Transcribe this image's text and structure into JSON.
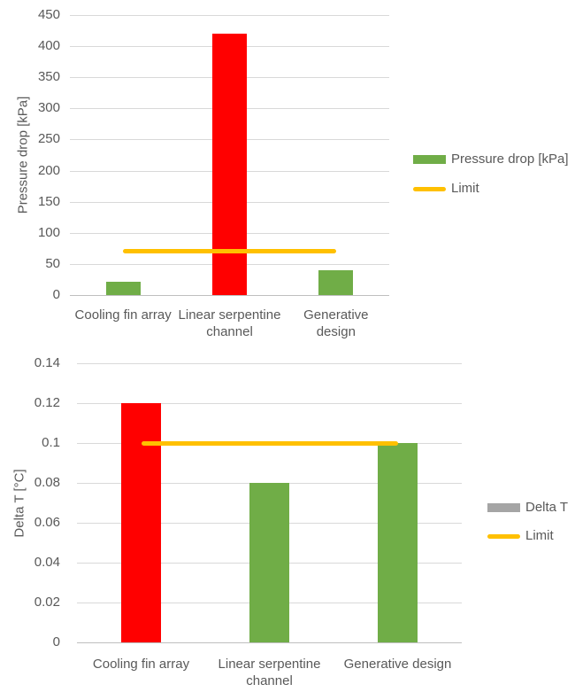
{
  "page": {
    "background": "#ffffff"
  },
  "colors": {
    "green": "#70AD47",
    "red": "#FF0000",
    "yellow": "#FFC000",
    "gray": "#A5A5A5",
    "text": "#595959",
    "gridline": "#D9D9D9",
    "axis": "#BFBFBF"
  },
  "chart_data": [
    {
      "type": "bar",
      "title": "",
      "xlabel": "",
      "ylabel": "Pressure drop [kPa]",
      "categories": [
        "Cooling fin array",
        "Linear serpentine channel",
        "Generative design"
      ],
      "category_lines": [
        [
          "Cooling fin array"
        ],
        [
          "Linear serpentine",
          "channel"
        ],
        [
          "Generative",
          "design"
        ]
      ],
      "values": [
        22,
        420,
        40
      ],
      "bar_colors": [
        "#70AD47",
        "#FF0000",
        "#70AD47"
      ],
      "ylim": [
        0,
        450
      ],
      "ytick_step": 50,
      "ytick_labels": [
        "0",
        "50",
        "100",
        "150",
        "200",
        "250",
        "300",
        "350",
        "400",
        "450"
      ],
      "grid": true,
      "limit": {
        "value": 70,
        "color": "#FFC000",
        "span_categories": [
          0,
          2
        ]
      },
      "legend": {
        "position": "right",
        "entries": [
          {
            "label": "Pressure drop [kPa]",
            "swatch": "rect",
            "color": "#70AD47"
          },
          {
            "label": "Limit",
            "swatch": "line",
            "color": "#FFC000"
          }
        ]
      }
    },
    {
      "type": "bar",
      "title": "",
      "xlabel": "",
      "ylabel": "Delta T [°C]",
      "categories": [
        "Cooling fin array",
        "Linear serpentine channel",
        "Generative design"
      ],
      "category_lines": [
        [
          "Cooling fin array"
        ],
        [
          "Linear serpentine",
          "channel"
        ],
        [
          "Generative design"
        ]
      ],
      "values": [
        0.12,
        0.08,
        0.1
      ],
      "bar_colors": [
        "#FF0000",
        "#70AD47",
        "#70AD47"
      ],
      "ylim": [
        0,
        0.14
      ],
      "ytick_step": 0.02,
      "ytick_labels": [
        "0",
        "0.02",
        "0.04",
        "0.06",
        "0.08",
        "0.1",
        "0.12",
        "0.14"
      ],
      "grid": true,
      "limit": {
        "value": 0.1,
        "color": "#FFC000",
        "span_categories": [
          0,
          2
        ]
      },
      "legend": {
        "position": "right",
        "entries": [
          {
            "label": "Delta T",
            "swatch": "rect",
            "color": "#A5A5A5"
          },
          {
            "label": "Limit",
            "swatch": "line",
            "color": "#FFC000"
          }
        ]
      }
    }
  ]
}
